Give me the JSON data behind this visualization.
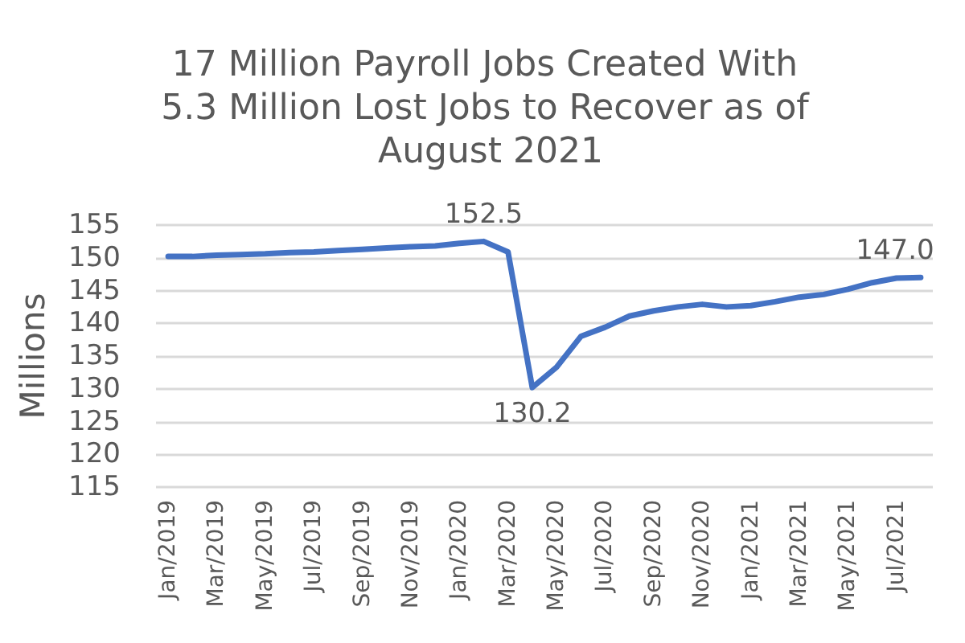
{
  "chart_data": {
    "type": "line",
    "title": "17 Million Payroll Jobs Created With 5.3 Million Lost Jobs to Recover as of August 2021",
    "ylabel": "Millions",
    "categories": [
      "Jan/2019",
      null,
      "Mar/2019",
      null,
      "May/2019",
      null,
      "Jul/2019",
      null,
      "Sep/2019",
      null,
      "Nov/2019",
      null,
      "Jan/2020",
      null,
      "Mar/2020",
      null,
      "May/2020",
      null,
      "Jul/2020",
      null,
      "Sep/2020",
      null,
      "Nov/2020",
      null,
      "Jan/2021",
      null,
      "Mar/2021",
      null,
      "May/2021",
      null,
      "Jul/2021",
      null
    ],
    "values": [
      150.2,
      150.2,
      150.4,
      150.5,
      150.6,
      150.8,
      150.9,
      151.1,
      151.3,
      151.5,
      151.7,
      151.8,
      152.2,
      152.5,
      150.9,
      130.2,
      133.3,
      138.0,
      139.4,
      141.1,
      141.9,
      142.5,
      142.9,
      142.5,
      142.7,
      143.3,
      144.0,
      144.4,
      145.2,
      146.2,
      146.9,
      147.0
    ],
    "value_labels": [
      null,
      null,
      null,
      null,
      null,
      null,
      null,
      null,
      null,
      null,
      null,
      null,
      null,
      "152.5",
      null,
      "130.2",
      null,
      null,
      null,
      null,
      null,
      null,
      null,
      null,
      null,
      null,
      null,
      null,
      null,
      null,
      null,
      "147.0"
    ],
    "color": "#4472c4",
    "ylim": [
      115,
      155
    ],
    "yticks": [
      115,
      120,
      125,
      130,
      135,
      140,
      145,
      150,
      155
    ],
    "grid": "y",
    "marker": "none",
    "line_style": "solid"
  }
}
